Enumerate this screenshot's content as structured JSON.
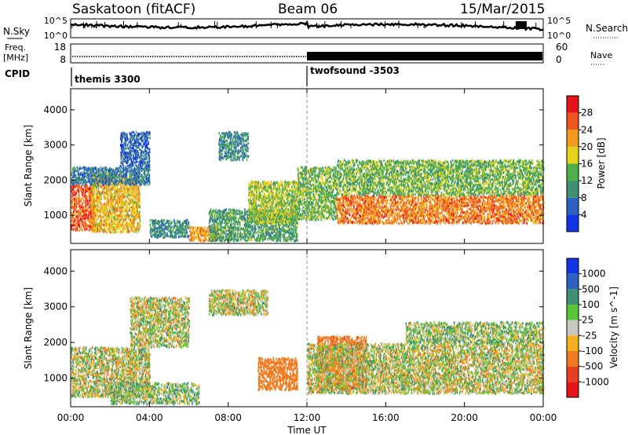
{
  "header": {
    "station": "Saskatoon (fitACF)",
    "beam": "Beam 06",
    "date": "15/Mar/2015"
  },
  "side_labels": {
    "nsky": "N.Sky",
    "freq_line1": "Freq.",
    "freq_line2": "[MHz]",
    "cpid": "CPID",
    "nsearch": "N.Search",
    "nave": "Nave"
  },
  "noise_panel": {
    "left_ticks": [
      "10^5",
      "10^0"
    ],
    "right_ticks": [
      "10^5",
      "10^0"
    ]
  },
  "freq_panel": {
    "left_ticks": [
      "18",
      "8"
    ],
    "right_ticks": [
      "60",
      "0"
    ]
  },
  "cpid": {
    "segments": [
      {
        "label": "themis 3300",
        "start_hour": 0
      },
      {
        "label": "twofsound -3503",
        "start_hour": 12
      }
    ]
  },
  "range_panels": {
    "ylabel": "Slant Range [km]",
    "yticks": [
      1000,
      2000,
      3000,
      4000
    ],
    "ylim": [
      200,
      4600
    ]
  },
  "time_axis": {
    "xlabel": "Time UT",
    "ticks": [
      "00:00",
      "04:00",
      "08:00",
      "12:00",
      "16:00",
      "20:00",
      "00:00"
    ],
    "xlim_hours": [
      0,
      24
    ]
  },
  "chart_data": [
    {
      "type": "heatmap",
      "title": "",
      "xlabel": "Time UT",
      "ylabel": "Slant Range [km]",
      "x_range_hours": [
        0,
        24
      ],
      "y_range_km": [
        200,
        4600
      ],
      "colorbar": {
        "label": "Power [dB]",
        "ticks": [
          4,
          8,
          12,
          16,
          20,
          24,
          28
        ],
        "range": [
          0,
          32
        ],
        "colors": [
          "#1432e6",
          "#2b62c4",
          "#3f8f72",
          "#4fb04a",
          "#e6d21a",
          "#f39b1d",
          "#f0551e",
          "#e6131a"
        ]
      },
      "series": [
        {
          "start_h": 0.0,
          "end_h": 1.2,
          "r_low": 600,
          "r_high": 1900,
          "value": 26
        },
        {
          "start_h": 1.0,
          "end_h": 3.5,
          "r_low": 550,
          "r_high": 2200,
          "value": 20
        },
        {
          "start_h": 0.0,
          "end_h": 4.0,
          "r_low": 1900,
          "r_high": 2400,
          "value": 8
        },
        {
          "start_h": 2.5,
          "end_h": 4.0,
          "r_low": 2400,
          "r_high": 3400,
          "value": 6
        },
        {
          "start_h": 4.0,
          "end_h": 6.0,
          "r_low": 400,
          "r_high": 900,
          "value": 10
        },
        {
          "start_h": 6.0,
          "end_h": 7.5,
          "r_low": 300,
          "r_high": 700,
          "value": 22
        },
        {
          "start_h": 7.0,
          "end_h": 11.5,
          "r_low": 300,
          "r_high": 1200,
          "value": 12
        },
        {
          "start_h": 7.5,
          "end_h": 9.0,
          "r_low": 2600,
          "r_high": 3400,
          "value": 10
        },
        {
          "start_h": 9.0,
          "end_h": 11.5,
          "r_low": 800,
          "r_high": 2000,
          "value": 16
        },
        {
          "start_h": 11.5,
          "end_h": 13.5,
          "r_low": 900,
          "r_high": 2400,
          "value": 14
        },
        {
          "start_h": 13.5,
          "end_h": 24.0,
          "r_low": 800,
          "r_high": 1600,
          "value": 24
        },
        {
          "start_h": 13.5,
          "end_h": 24.0,
          "r_low": 1600,
          "r_high": 2600,
          "value": 14
        }
      ]
    },
    {
      "type": "heatmap",
      "title": "",
      "xlabel": "Time UT",
      "ylabel": "Slant Range [km]",
      "x_range_hours": [
        0,
        24
      ],
      "y_range_km": [
        200,
        4600
      ],
      "colorbar": {
        "label": "Velocity [m s^-1]",
        "ticks": [
          1000,
          500,
          100,
          25,
          -25,
          -100,
          -500,
          -1000
        ],
        "colors": [
          "#1432e6",
          "#2b62c4",
          "#3f8f72",
          "#59c63a",
          "#c8c8c0",
          "#f5b21e",
          "#f07a1e",
          "#e8401e",
          "#e6131a"
        ]
      },
      "series": [
        {
          "start_h": 0.0,
          "end_h": 4.0,
          "r_low": 500,
          "r_high": 1900,
          "value": 0
        },
        {
          "start_h": 2.0,
          "end_h": 6.5,
          "r_low": 300,
          "r_high": 900,
          "value": 60
        },
        {
          "start_h": 3.0,
          "end_h": 6.0,
          "r_low": 1900,
          "r_high": 3300,
          "value": 0
        },
        {
          "start_h": 7.0,
          "end_h": 10.0,
          "r_low": 2800,
          "r_high": 3500,
          "value": 0
        },
        {
          "start_h": 9.5,
          "end_h": 11.5,
          "r_low": 700,
          "r_high": 1600,
          "value": -300
        },
        {
          "start_h": 12.5,
          "end_h": 15.0,
          "r_low": 700,
          "r_high": 2200,
          "value": -400
        },
        {
          "start_h": 12.0,
          "end_h": 24.0,
          "r_low": 600,
          "r_high": 2000,
          "value": 0
        },
        {
          "start_h": 17.0,
          "end_h": 24.0,
          "r_low": 2000,
          "r_high": 2600,
          "value": 50
        }
      ]
    }
  ]
}
